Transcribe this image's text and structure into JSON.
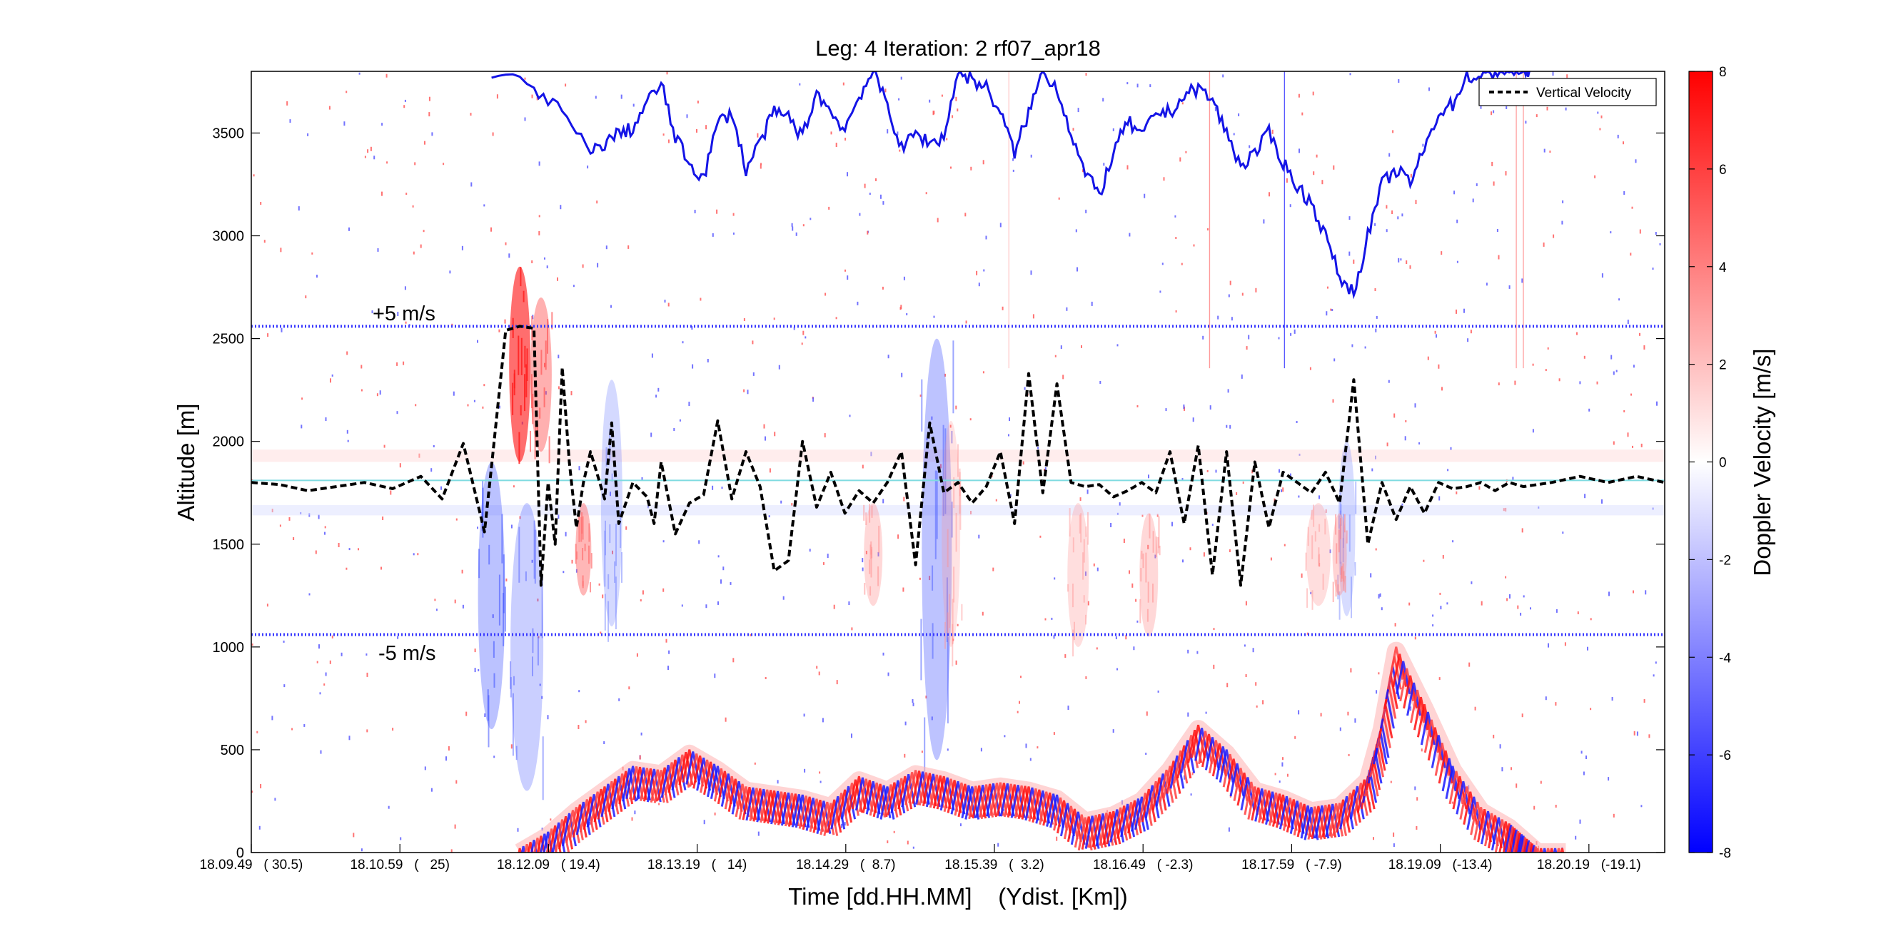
{
  "chart_data": {
    "type": "heatmap",
    "title": "Leg: 4  Iteration: 2  rf07_apr18",
    "xlabel": "Time [dd.HH.MM]    (Ydist. [Km])",
    "ylabel": "Altitude [m]",
    "colorbar_label": "Doppler Velocity [m/s]",
    "ylim": [
      0,
      3800
    ],
    "clim": [
      -8,
      8
    ],
    "colormap": {
      "negative": "#0000ff",
      "zero": "#ffffff",
      "positive": "#ff0000"
    },
    "y_ticks": [
      "0",
      "500",
      "1000",
      "1500",
      "2000",
      "2500",
      "3000",
      "3500"
    ],
    "y_tick_values": [
      0,
      500,
      1000,
      1500,
      2000,
      2500,
      3000,
      3500
    ],
    "x_ticks": [
      {
        "label": "18.09.49   ( 30.5)"
      },
      {
        "label": "18.10.59   (   25)"
      },
      {
        "label": "18.12.09   ( 19.4)"
      },
      {
        "label": "18.13.19   (   14)"
      },
      {
        "label": "18.14.29   (  8.7)"
      },
      {
        "label": "18.15.39   (  3.2)"
      },
      {
        "label": "18.16.49   ( -2.3)"
      },
      {
        "label": "18.17.59   ( -7.9)"
      },
      {
        "label": "18.19.09   (-13.4)"
      },
      {
        "label": "18.20.19   (-19.1)"
      }
    ],
    "colorbar_ticks": [
      "-8",
      "-6",
      "-4",
      "-2",
      "0",
      "2",
      "4",
      "6",
      "8"
    ],
    "colorbar_tick_values": [
      -8,
      -6,
      -4,
      -2,
      0,
      2,
      4,
      6,
      8
    ],
    "legend": {
      "entries": [
        "Vertical Velocity"
      ],
      "placement": "top-right"
    },
    "reference_lines": [
      {
        "label": "+5 m/s",
        "altitude": 2560,
        "style": "dotted-blue"
      },
      {
        "label": "-5 m/s",
        "altitude": 1060,
        "style": "dotted-blue"
      }
    ],
    "zero_line": {
      "altitude": 1810,
      "color": "#7fdbe0"
    },
    "vertical_velocity_x_fraction": [
      0,
      0.02,
      0.04,
      0.06,
      0.08,
      0.1,
      0.12,
      0.135,
      0.15,
      0.165,
      0.17,
      0.18,
      0.19,
      0.2,
      0.205,
      0.21,
      0.215,
      0.22,
      0.225,
      0.23,
      0.235,
      0.24,
      0.25,
      0.255,
      0.26,
      0.27,
      0.28,
      0.285,
      0.29,
      0.3,
      0.31,
      0.32,
      0.33,
      0.34,
      0.35,
      0.36,
      0.37,
      0.38,
      0.39,
      0.4,
      0.41,
      0.42,
      0.43,
      0.44,
      0.45,
      0.46,
      0.47,
      0.48,
      0.49,
      0.5,
      0.51,
      0.52,
      0.53,
      0.54,
      0.55,
      0.56,
      0.57,
      0.58,
      0.59,
      0.6,
      0.61,
      0.62,
      0.63,
      0.64,
      0.65,
      0.66,
      0.67,
      0.68,
      0.69,
      0.7,
      0.71,
      0.72,
      0.73,
      0.74,
      0.75,
      0.76,
      0.77,
      0.78,
      0.79,
      0.8,
      0.81,
      0.82,
      0.83,
      0.84,
      0.85,
      0.86,
      0.87,
      0.88,
      0.89,
      0.9,
      0.92,
      0.94,
      0.96,
      0.98,
      1.0
    ],
    "vertical_velocity_altitude": [
      1800,
      1790,
      1760,
      1780,
      1800,
      1770,
      1830,
      1720,
      1990,
      1560,
      1880,
      2540,
      2560,
      2550,
      1300,
      1800,
      1500,
      2360,
      1900,
      1580,
      1800,
      1950,
      1720,
      2090,
      1600,
      1800,
      1730,
      1600,
      1900,
      1550,
      1700,
      1740,
      2100,
      1720,
      1950,
      1780,
      1370,
      1420,
      2000,
      1680,
      1850,
      1650,
      1760,
      1700,
      1800,
      1950,
      1400,
      2090,
      1750,
      1800,
      1700,
      1780,
      1950,
      1600,
      2330,
      1750,
      2280,
      1800,
      1780,
      1790,
      1730,
      1760,
      1800,
      1750,
      1950,
      1600,
      1980,
      1350,
      1950,
      1300,
      1900,
      1580,
      1850,
      1800,
      1750,
      1850,
      1700,
      2300,
      1500,
      1800,
      1620,
      1780,
      1650,
      1800,
      1770,
      1780,
      1800,
      1760,
      1800,
      1780,
      1800,
      1830,
      1800,
      1830,
      1800
    ],
    "aircraft_track_x_fraction": [
      0.17,
      0.2,
      0.22,
      0.24,
      0.25,
      0.26,
      0.27,
      0.28,
      0.29,
      0.3,
      0.31,
      0.32,
      0.33,
      0.34,
      0.35,
      0.36,
      0.37,
      0.38,
      0.39,
      0.4,
      0.41,
      0.42,
      0.43,
      0.44,
      0.45,
      0.46,
      0.47,
      0.48,
      0.49,
      0.5,
      0.51,
      0.52,
      0.53,
      0.54,
      0.55,
      0.56,
      0.57,
      0.58,
      0.59,
      0.6,
      0.61,
      0.62,
      0.63,
      0.64,
      0.65,
      0.66,
      0.67,
      0.68,
      0.69,
      0.7,
      0.71,
      0.72,
      0.73,
      0.74,
      0.75,
      0.76,
      0.77,
      0.78,
      0.79,
      0.8,
      0.81,
      0.82,
      0.83,
      0.84,
      0.85,
      0.86,
      0.87,
      0.88,
      0.89,
      0.9,
      0.905
    ],
    "aircraft_track_altitude": [
      3800,
      3720,
      3600,
      3400,
      3450,
      3500,
      3520,
      3650,
      3740,
      3480,
      3350,
      3280,
      3550,
      3600,
      3320,
      3460,
      3600,
      3580,
      3480,
      3700,
      3600,
      3520,
      3680,
      3800,
      3640,
      3420,
      3500,
      3450,
      3480,
      3800,
      3760,
      3720,
      3600,
      3400,
      3600,
      3800,
      3720,
      3500,
      3300,
      3200,
      3400,
      3560,
      3480,
      3600,
      3600,
      3680,
      3720,
      3660,
      3500,
      3340,
      3400,
      3500,
      3360,
      3240,
      3160,
      3000,
      2800,
      2720,
      3000,
      3250,
      3320,
      3260,
      3420,
      3600,
      3640,
      3780,
      3760,
      3800,
      3800,
      3800,
      3800
    ],
    "terrain_x_fraction": [
      0.19,
      0.21,
      0.23,
      0.25,
      0.27,
      0.29,
      0.31,
      0.33,
      0.35,
      0.37,
      0.39,
      0.41,
      0.43,
      0.45,
      0.47,
      0.49,
      0.51,
      0.53,
      0.55,
      0.57,
      0.59,
      0.61,
      0.63,
      0.65,
      0.67,
      0.69,
      0.71,
      0.73,
      0.75,
      0.77,
      0.79,
      0.8,
      0.81,
      0.83,
      0.85,
      0.87,
      0.89,
      0.9,
      0.91,
      0.93
    ],
    "terrain_altitude": [
      0,
      80,
      200,
      300,
      400,
      380,
      480,
      400,
      300,
      280,
      260,
      220,
      350,
      300,
      380,
      350,
      300,
      320,
      300,
      260,
      150,
      180,
      250,
      400,
      600,
      480,
      300,
      260,
      200,
      220,
      350,
      600,
      980,
      700,
      400,
      200,
      120,
      60,
      0,
      0
    ]
  }
}
